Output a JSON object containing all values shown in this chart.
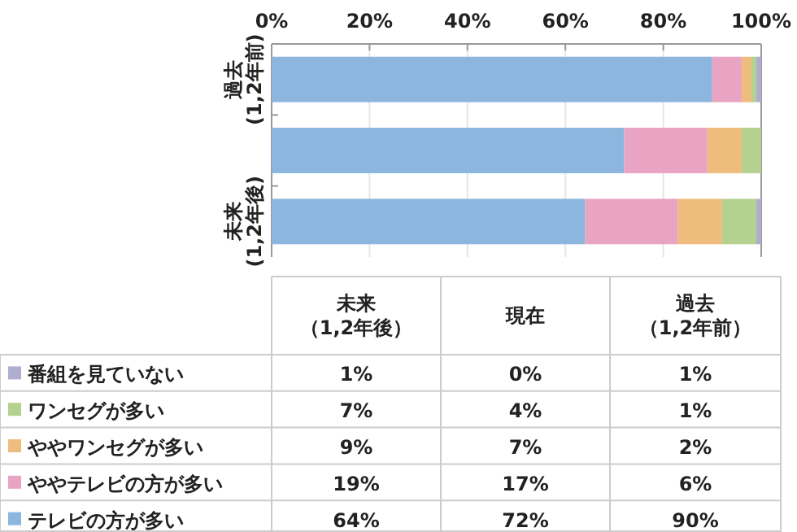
{
  "chart_data": {
    "type": "bar",
    "orientation": "horizontal",
    "stacked": true,
    "categories": [
      "過去(1,2年前)",
      null,
      "未来(1,2年後)"
    ],
    "series": [
      {
        "name": "テレビの方が多い",
        "color": "#8cb6dd",
        "values": [
          90,
          72,
          64
        ]
      },
      {
        "name": "ややテレビの方が多い",
        "color": "#e9a3c3",
        "values": [
          6,
          17,
          19
        ]
      },
      {
        "name": "ややワンセグが多い",
        "color": "#eebd7e",
        "values": [
          2,
          7,
          9
        ]
      },
      {
        "name": "ワンセグが多い",
        "color": "#b5d18f",
        "values": [
          1,
          4,
          7
        ]
      },
      {
        "name": "番組を見ていない",
        "color": "#b0aed0",
        "values": [
          1,
          0,
          1
        ]
      }
    ],
    "xlim": [
      0,
      100
    ],
    "xticks": [
      {
        "value": 0,
        "label": "0%"
      },
      {
        "value": 20,
        "label": "20%"
      },
      {
        "value": 40,
        "label": "40%"
      },
      {
        "value": 60,
        "label": "60%"
      },
      {
        "value": 80,
        "label": "80%"
      },
      {
        "value": 100,
        "label": "100%"
      }
    ],
    "grid": "x",
    "legend": "bottom",
    "annotations": [
      "未来（1,2年後）",
      "現在",
      "過去（1,2年前）",
      "1%",
      "0%",
      "1%",
      "7%",
      "4%",
      "1%",
      "9%",
      "7%",
      "2%",
      "19%",
      "17%",
      "6%",
      "64%",
      "72%",
      "90%"
    ]
  }
}
